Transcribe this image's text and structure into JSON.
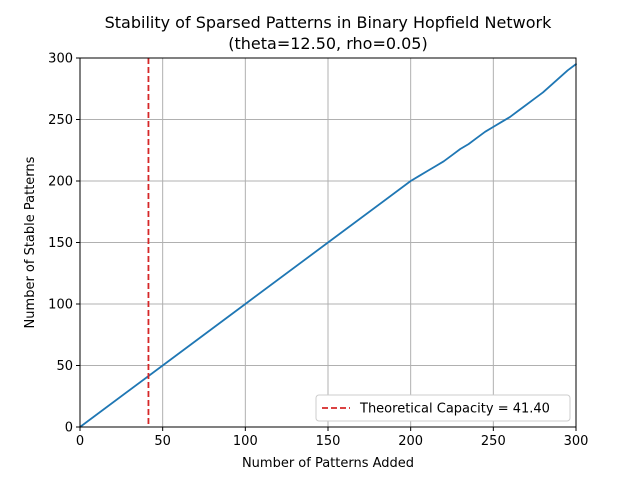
{
  "chart_data": {
    "type": "line",
    "title": "Stability of Sparsed Patterns in Binary Hopfield Network",
    "subtitle": "(theta=12.50, rho=0.05)",
    "xlabel": "Number of Patterns Added",
    "ylabel": "Number of Stable Patterns",
    "xlim": [
      0,
      300
    ],
    "ylim": [
      0,
      300
    ],
    "xticks": [
      "0",
      "50",
      "100",
      "150",
      "200",
      "250",
      "300"
    ],
    "yticks": [
      "0",
      "50",
      "100",
      "150",
      "200",
      "250",
      "300"
    ],
    "grid": true,
    "legend_position": "lower-right",
    "series": [
      {
        "color": "#1f77b4",
        "x": [
          0,
          50,
          100,
          150,
          200,
          205,
          210,
          215,
          220,
          225,
          230,
          235,
          240,
          245,
          250,
          255,
          260,
          265,
          270,
          275,
          280,
          285,
          290,
          295,
          300
        ],
        "values": [
          0,
          50,
          100,
          150,
          200,
          204,
          208,
          212,
          216,
          221,
          226,
          230,
          235,
          240,
          244,
          248,
          252,
          257,
          262,
          267,
          272,
          278,
          284,
          290,
          295
        ]
      }
    ],
    "reference_lines": [
      {
        "name": "Theoretical Capacity = 41.40",
        "orientation": "vertical",
        "x": 41.4,
        "color": "#d62728",
        "style": "dashed"
      }
    ]
  }
}
